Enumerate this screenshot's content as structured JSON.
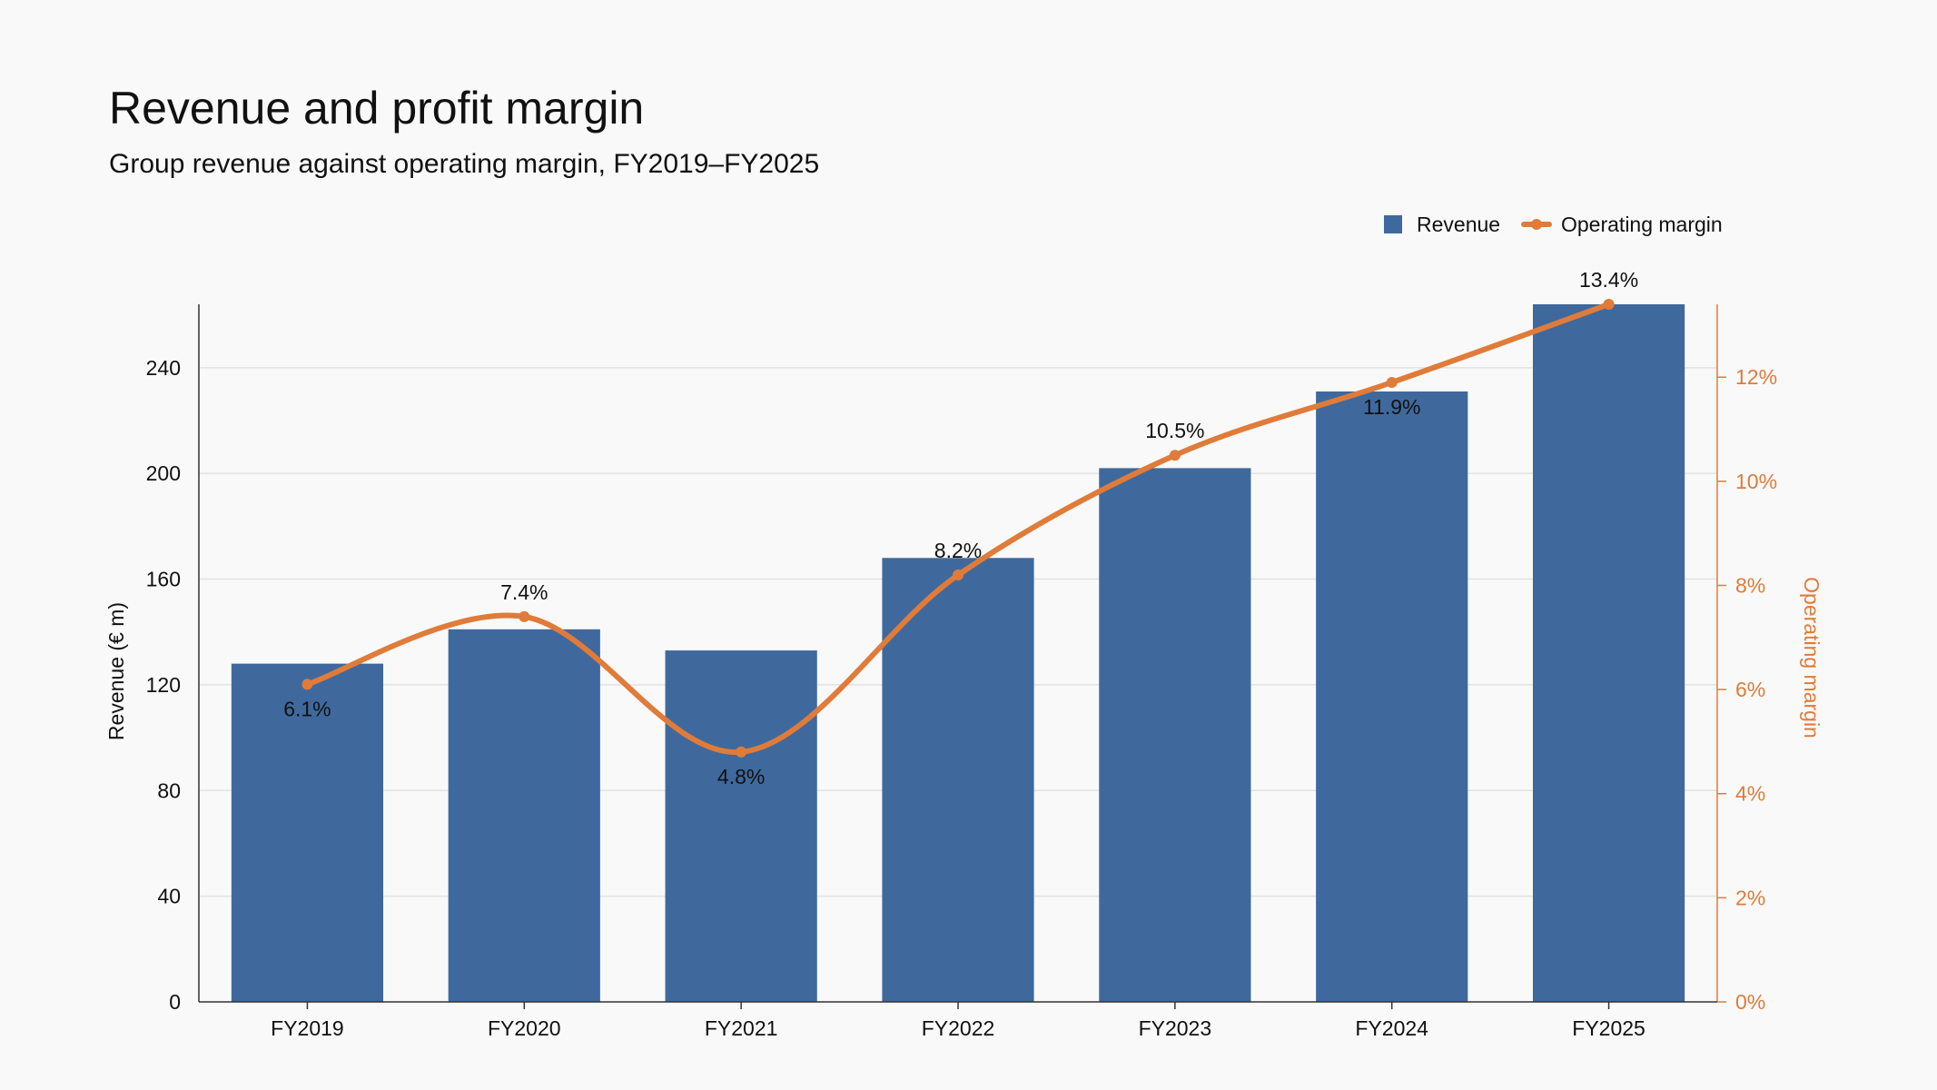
{
  "chart_data": {
    "type": "bar",
    "title": "Revenue and profit margin",
    "subtitle": "Group revenue against operating margin, FY2019–FY2025",
    "categories": [
      "FY2019",
      "FY2020",
      "FY2021",
      "FY2022",
      "FY2023",
      "FY2024",
      "FY2025"
    ],
    "series": [
      {
        "name": "Revenue",
        "type": "bar",
        "axis": "left",
        "color": "#3f699d",
        "values": [
          128,
          141,
          133,
          168,
          202,
          231,
          264
        ]
      },
      {
        "name": "Operating margin",
        "type": "line",
        "axis": "right",
        "color": "#e07b39",
        "values": [
          6.1,
          7.4,
          4.8,
          8.2,
          10.5,
          11.9,
          13.4
        ],
        "labels": [
          "6.1%",
          "7.4%",
          "4.8%",
          "8.2%",
          "10.5%",
          "11.9%",
          "13.4%"
        ]
      }
    ],
    "y_left": {
      "label": "Revenue (€ m)",
      "range": [
        0,
        264
      ],
      "ticks": [
        0,
        40,
        80,
        120,
        160,
        200,
        240
      ]
    },
    "y_right": {
      "label": "Operating margin",
      "range": [
        0,
        13.4
      ],
      "ticks": [
        0,
        2,
        4,
        6,
        8,
        10,
        12
      ],
      "tick_labels": [
        "0%",
        "2%",
        "4%",
        "6%",
        "8%",
        "10%",
        "12%"
      ]
    },
    "grid": "horizontal",
    "legend_position": "top-right"
  }
}
